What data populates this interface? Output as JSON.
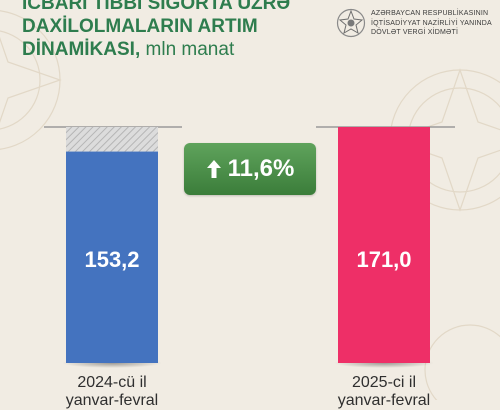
{
  "header": {
    "title_lines": [
      "İCBARİ TİBBİ SIĞORTA ÜZRƏ",
      "DAXİLOLMALARIN ARTIM"
    ],
    "title_last": "DİNAMİKASI,",
    "unit": "mln manat"
  },
  "agency": {
    "lines": [
      "AZƏRBAYCAN RESPUBLİKASININ",
      "İQTİSADİYYAT NAZİRLİYİ YANINDA",
      "DÖVLƏT VERGİ XİDMƏTİ"
    ],
    "emblem_icon": "state-emblem-icon"
  },
  "change": {
    "label": "11,6%",
    "icon": "arrow-up-icon",
    "color": "#4a8f47"
  },
  "chart_data": {
    "type": "bar",
    "categories": [
      "2024-cü il yanvar-fevral",
      "2025-ci il yanvar-fevral"
    ],
    "category_lines": [
      [
        "2024-cü il",
        "yanvar-fevral"
      ],
      [
        "2025-ci il",
        "yanvar-fevral"
      ]
    ],
    "values": [
      153.2,
      171.0
    ],
    "value_labels": [
      "153,2",
      "171,0"
    ],
    "colors": [
      "#4473bf",
      "#ee2f67"
    ],
    "title": "İCBARİ TİBBİ SIĞORTA ÜZRƏ DAXİLOLMALARIN ARTIM DİNAMİKASI, mln manat",
    "xlabel": "",
    "ylabel": "",
    "ylim": [
      0,
      171.0
    ],
    "grid": false,
    "legend": "none"
  }
}
